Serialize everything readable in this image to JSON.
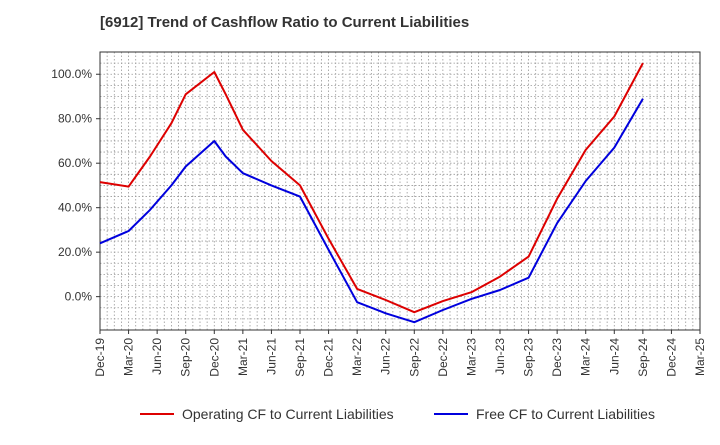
{
  "chart_data": {
    "type": "line",
    "title": "[6912]  Trend of Cashflow Ratio to Current Liabilities",
    "xlabel": "",
    "ylabel": "",
    "categories": [
      "Dec-19",
      "Mar-20",
      "Jun-20",
      "Sep-20",
      "Dec-20",
      "Mar-21",
      "Jun-21",
      "Sep-21",
      "Dec-21",
      "Mar-22",
      "Jun-22",
      "Sep-22",
      "Dec-22",
      "Mar-23",
      "Jun-23",
      "Sep-23",
      "Dec-23",
      "Mar-24",
      "Jun-24",
      "Sep-24",
      "Dec-24",
      "Mar-25"
    ],
    "y_ticks": [
      0,
      20,
      40,
      60,
      80,
      100
    ],
    "y_tick_labels": [
      "0.0%",
      "20.0%",
      "40.0%",
      "60.0%",
      "80.0%",
      "100.0%"
    ],
    "ylim": [
      -15,
      110
    ],
    "grid": true,
    "legend_position": "bottom",
    "series": [
      {
        "name": "Operating CF to Current Liabilities",
        "color": "#dd0000",
        "points": [
          {
            "x": 0.0,
            "y": 51.5
          },
          {
            "x": 1.0,
            "y": 49.5
          },
          {
            "x": 1.75,
            "y": 63.0
          },
          {
            "x": 2.5,
            "y": 78.0
          },
          {
            "x": 3.0,
            "y": 91.0
          },
          {
            "x": 4.0,
            "y": 101.0
          },
          {
            "x": 4.4,
            "y": 91.0
          },
          {
            "x": 5.0,
            "y": 75.0
          },
          {
            "x": 6.0,
            "y": 61.0
          },
          {
            "x": 7.0,
            "y": 50.0
          },
          {
            "x": 8.0,
            "y": 26.0
          },
          {
            "x": 9.0,
            "y": 3.5
          },
          {
            "x": 10.0,
            "y": -1.5
          },
          {
            "x": 11.0,
            "y": -7.0
          },
          {
            "x": 12.0,
            "y": -2.0
          },
          {
            "x": 13.0,
            "y": 2.0
          },
          {
            "x": 14.0,
            "y": 9.0
          },
          {
            "x": 15.0,
            "y": 18.0
          },
          {
            "x": 16.0,
            "y": 44.0
          },
          {
            "x": 17.0,
            "y": 66.0
          },
          {
            "x": 18.0,
            "y": 81.0
          },
          {
            "x": 19.0,
            "y": 105.0
          }
        ]
      },
      {
        "name": "Free CF to Current Liabilities",
        "color": "#0000dd",
        "points": [
          {
            "x": 0.0,
            "y": 24.0
          },
          {
            "x": 1.0,
            "y": 29.5
          },
          {
            "x": 1.75,
            "y": 39.0
          },
          {
            "x": 2.5,
            "y": 50.0
          },
          {
            "x": 3.0,
            "y": 58.5
          },
          {
            "x": 4.0,
            "y": 70.0
          },
          {
            "x": 4.4,
            "y": 63.0
          },
          {
            "x": 5.0,
            "y": 55.5
          },
          {
            "x": 6.0,
            "y": 50.0
          },
          {
            "x": 7.0,
            "y": 45.0
          },
          {
            "x": 8.0,
            "y": 21.0
          },
          {
            "x": 9.0,
            "y": -2.5
          },
          {
            "x": 10.0,
            "y": -7.5
          },
          {
            "x": 11.0,
            "y": -11.5
          },
          {
            "x": 12.0,
            "y": -6.0
          },
          {
            "x": 13.0,
            "y": -1.0
          },
          {
            "x": 14.0,
            "y": 3.0
          },
          {
            "x": 15.0,
            "y": 8.5
          },
          {
            "x": 16.0,
            "y": 33.0
          },
          {
            "x": 17.0,
            "y": 52.0
          },
          {
            "x": 18.0,
            "y": 67.0
          },
          {
            "x": 19.0,
            "y": 89.0
          }
        ]
      }
    ]
  }
}
